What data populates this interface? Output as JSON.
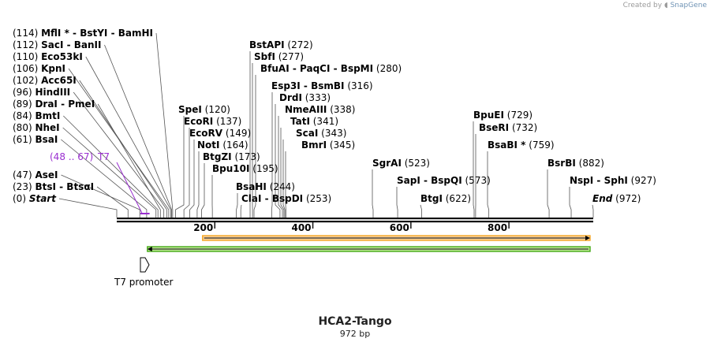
{
  "credit": {
    "prefix": "Created by",
    "brand": "SnapGene",
    "icon": "snapgene-logo-icon"
  },
  "construct": {
    "name": "HCA2-Tango",
    "length_label": "972 bp",
    "length": 972
  },
  "ruler": {
    "ticks": [
      200,
      400,
      600,
      800
    ]
  },
  "sites": [
    {
      "pos": "(114)",
      "names": [
        "MflI *",
        "BstYI",
        "BamHI"
      ],
      "cut": 114
    },
    {
      "pos": "(112)",
      "names": [
        "SacI",
        "BanII"
      ],
      "cut": 112
    },
    {
      "pos": "(110)",
      "names": [
        "Eco53kI"
      ],
      "cut": 110
    },
    {
      "pos": "(106)",
      "names": [
        "KpnI"
      ],
      "cut": 106
    },
    {
      "pos": "(102)",
      "names": [
        "Acc65I"
      ],
      "cut": 102
    },
    {
      "pos": "(96)",
      "names": [
        "HindIII"
      ],
      "cut": 96
    },
    {
      "pos": "(89)",
      "names": [
        "DraI",
        "PmeI"
      ],
      "cut": 89
    },
    {
      "pos": "(84)",
      "names": [
        "BmtI"
      ],
      "cut": 84
    },
    {
      "pos": "(80)",
      "names": [
        "NheI"
      ],
      "cut": 80
    },
    {
      "pos": "(61)",
      "names": [
        "BsaI"
      ],
      "cut": 61
    },
    {
      "pos": "(47)",
      "names": [
        "AseI"
      ],
      "cut": 47
    },
    {
      "pos": "(23)",
      "names": [
        "BtsI",
        "BtsαI"
      ],
      "cut": 23
    },
    {
      "pos": "(0)",
      "names": [
        "Start"
      ],
      "cut": 0,
      "italic": true
    },
    {
      "pos": "(120)",
      "names": [
        "SpeI"
      ],
      "cut": 120
    },
    {
      "pos": "(137)",
      "names": [
        "EcoRI"
      ],
      "cut": 137
    },
    {
      "pos": "(149)",
      "names": [
        "EcoRV"
      ],
      "cut": 149
    },
    {
      "pos": "(164)",
      "names": [
        "NotI"
      ],
      "cut": 164
    },
    {
      "pos": "(173)",
      "names": [
        "BtgZI"
      ],
      "cut": 173
    },
    {
      "pos": "(195)",
      "names": [
        "Bpu10I"
      ],
      "cut": 195
    },
    {
      "pos": "(244)",
      "names": [
        "BsaHI"
      ],
      "cut": 244
    },
    {
      "pos": "(253)",
      "names": [
        "ClaI",
        "BspDI"
      ],
      "cut": 253
    },
    {
      "pos": "(272)",
      "names": [
        "BstAPI"
      ],
      "cut": 272
    },
    {
      "pos": "(277)",
      "names": [
        "SbfI"
      ],
      "cut": 277
    },
    {
      "pos": "(280)",
      "names": [
        "BfuAI",
        "PaqCI",
        "BspMI"
      ],
      "cut": 280
    },
    {
      "pos": "(316)",
      "names": [
        "Esp3I",
        "BsmBI"
      ],
      "cut": 316
    },
    {
      "pos": "(333)",
      "names": [
        "DrdI"
      ],
      "cut": 333
    },
    {
      "pos": "(338)",
      "names": [
        "NmeAIII"
      ],
      "cut": 338
    },
    {
      "pos": "(341)",
      "names": [
        "TatI"
      ],
      "cut": 341
    },
    {
      "pos": "(343)",
      "names": [
        "ScaI"
      ],
      "cut": 343
    },
    {
      "pos": "(345)",
      "names": [
        "BmrI"
      ],
      "cut": 345
    },
    {
      "pos": "(523)",
      "names": [
        "SgrAI"
      ],
      "cut": 523
    },
    {
      "pos": "(573)",
      "names": [
        "SapI",
        "BspQI"
      ],
      "cut": 573
    },
    {
      "pos": "(622)",
      "names": [
        "BtgI"
      ],
      "cut": 622
    },
    {
      "pos": "(729)",
      "names": [
        "BpuEI"
      ],
      "cut": 729
    },
    {
      "pos": "(732)",
      "names": [
        "BseRI"
      ],
      "cut": 732
    },
    {
      "pos": "(759)",
      "names": [
        "BsaBI *"
      ],
      "cut": 759
    },
    {
      "pos": "(882)",
      "names": [
        "BsrBI"
      ],
      "cut": 882
    },
    {
      "pos": "(927)",
      "names": [
        "NspI",
        "SphI"
      ],
      "cut": 927
    },
    {
      "pos": "(972)",
      "names": [
        "End"
      ],
      "cut": 972,
      "italic": true
    }
  ],
  "features": {
    "t7_site": {
      "range": "(48 .. 67)",
      "name": "T7",
      "start": 48,
      "end": 67,
      "color": "#9a2fd0"
    },
    "t7_promoter": {
      "name": "T7 promoter",
      "icon": "promoter-arrow-icon"
    },
    "orf_forward": {
      "start": 175,
      "end": 972,
      "color": "#f5a623",
      "fill": "#f9d3a0"
    },
    "orf_reverse": {
      "start": 85,
      "end": 972,
      "color": "#43a814",
      "fill": "#c4ec9c"
    }
  },
  "colors": {
    "backbone": "#111111",
    "line": "#555555"
  }
}
